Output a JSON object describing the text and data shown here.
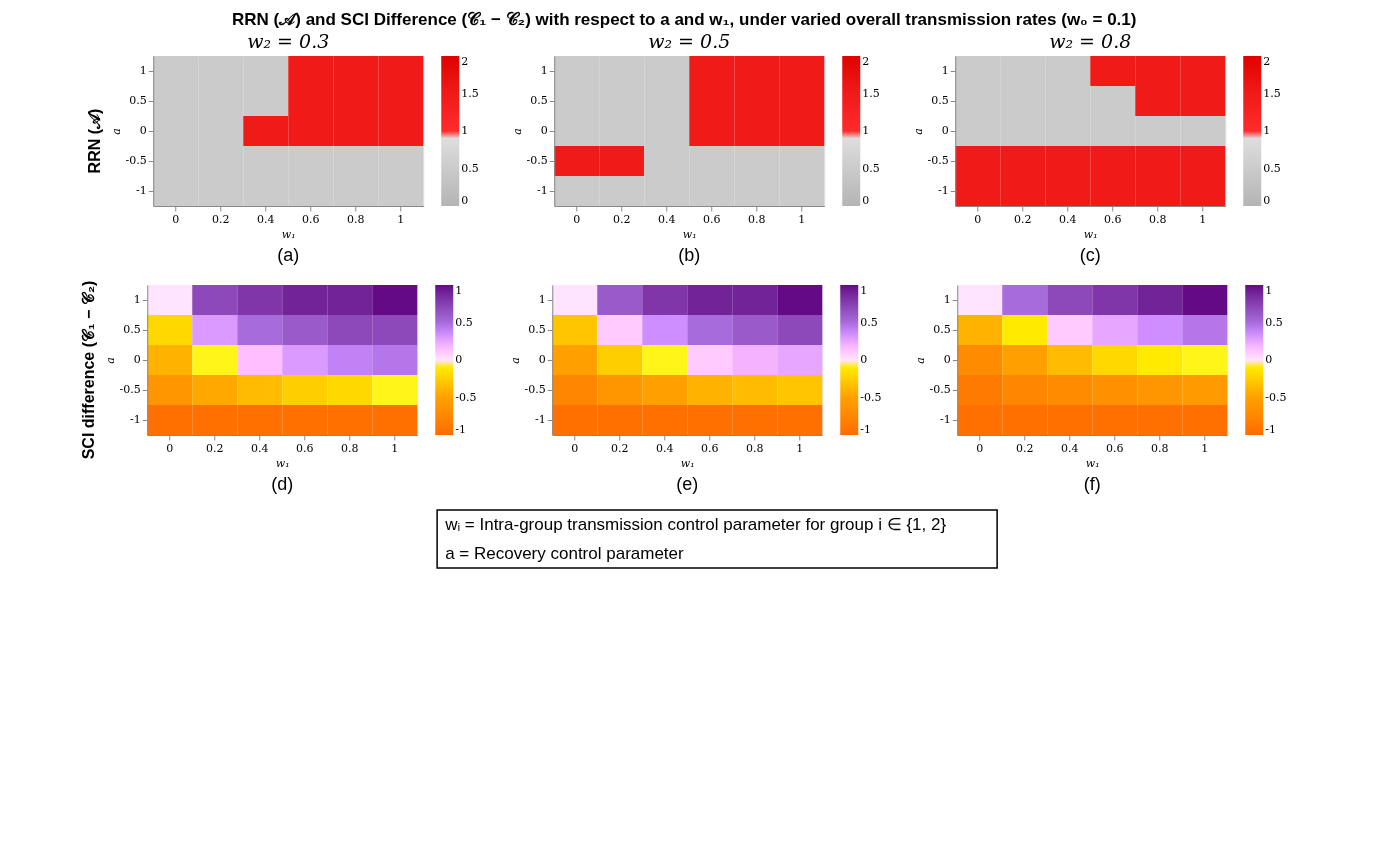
{
  "chart_data": [
    {
      "type": "heatmap",
      "title": "w₂ = 0.3",
      "xlabel": "w₁",
      "ylabel": "a",
      "annotations": [
        "RRN (𝒜) and SCI Difference (𝒞₁ − 𝒞₂) with respect to a and w₁, under varied overall transmission rates (w₀ = 0.1)",
        "RRN (𝒜)",
        "(a)",
        "wᵢ = Intra-group transmission control parameter for group i ∈ {1, 2}",
        "a = Recovery control parameter"
      ],
      "categories": [
        "0",
        "0.2",
        "0.4",
        "0.6",
        "0.8",
        "1"
      ],
      "y_categories": [
        "1",
        "0.5",
        "0",
        "-0.5",
        "-1"
      ],
      "cells": [
        [
          0.5,
          0.5,
          0.5,
          1.5,
          1.5,
          1.5
        ],
        [
          0.5,
          0.5,
          0.5,
          1.5,
          1.5,
          1.5
        ],
        [
          0.5,
          0.5,
          1.5,
          1.5,
          1.5,
          1.5
        ],
        [
          0.5,
          0.5,
          0.5,
          0.5,
          0.5,
          0.5
        ],
        [
          0.5,
          0.5,
          0.5,
          0.5,
          0.5,
          0.5
        ]
      ],
      "clim": [
        0,
        2
      ],
      "cticks": [
        0,
        0.5,
        1,
        1.5,
        2
      ]
    },
    {
      "type": "heatmap",
      "title": "w₂ = 0.5",
      "xlabel": "w₁",
      "ylabel": "a",
      "annotations": [
        "(b)"
      ],
      "categories": [
        "0",
        "0.2",
        "0.4",
        "0.6",
        "0.8",
        "1"
      ],
      "y_categories": [
        "1",
        "0.5",
        "0",
        "-0.5",
        "-1"
      ],
      "cells": [
        [
          0.5,
          0.5,
          0.5,
          1.5,
          1.5,
          1.5
        ],
        [
          0.5,
          0.5,
          0.5,
          1.5,
          1.5,
          1.5
        ],
        [
          0.5,
          0.5,
          0.5,
          1.5,
          1.5,
          1.5
        ],
        [
          1.5,
          1.5,
          0.5,
          0.5,
          0.5,
          0.5
        ],
        [
          0.5,
          0.5,
          0.5,
          0.5,
          0.5,
          0.5
        ]
      ],
      "clim": [
        0,
        2
      ],
      "cticks": [
        0,
        0.5,
        1,
        1.5,
        2
      ]
    },
    {
      "type": "heatmap",
      "title": "w₂ = 0.8",
      "xlabel": "w₁",
      "ylabel": "a",
      "annotations": [
        "(c)"
      ],
      "categories": [
        "0",
        "0.2",
        "0.4",
        "0.6",
        "0.8",
        "1"
      ],
      "y_categories": [
        "1",
        "0.5",
        "0",
        "-0.5",
        "-1"
      ],
      "cells": [
        [
          0.5,
          0.5,
          0.5,
          1.5,
          1.5,
          1.5
        ],
        [
          0.5,
          0.5,
          0.5,
          0.5,
          1.5,
          1.5
        ],
        [
          0.5,
          0.5,
          0.5,
          0.5,
          0.5,
          0.5
        ],
        [
          1.5,
          1.5,
          1.5,
          1.5,
          1.5,
          1.5
        ],
        [
          1.5,
          1.5,
          1.5,
          1.5,
          1.5,
          1.5
        ]
      ],
      "clim": [
        0,
        2
      ],
      "cticks": [
        0,
        0.5,
        1,
        1.5,
        2
      ]
    },
    {
      "type": "heatmap",
      "xlabel": "w₁",
      "ylabel": "a",
      "annotations": [
        "SCI difference (𝒞₁ − 𝒞₂)",
        "(d)"
      ],
      "categories": [
        "0",
        "0.2",
        "0.4",
        "0.6",
        "0.8",
        "1"
      ],
      "y_categories": [
        "1",
        "0.5",
        "0",
        "-0.5",
        "-1"
      ],
      "cells": [
        [
          0,
          0.7,
          0.8,
          0.9,
          0.9,
          1
        ],
        [
          -0.2,
          0.3,
          0.5,
          0.6,
          0.7,
          0.7
        ],
        [
          -0.4,
          -0.05,
          0.15,
          0.3,
          0.4,
          0.45
        ],
        [
          -0.6,
          -0.45,
          -0.35,
          -0.25,
          -0.2,
          -0.05
        ],
        [
          -0.95,
          -0.95,
          -0.95,
          -0.95,
          -0.95,
          -0.95
        ]
      ],
      "clim": [
        -1,
        1
      ],
      "cticks": [
        -1,
        -0.5,
        0,
        0.5,
        1
      ]
    },
    {
      "type": "heatmap",
      "xlabel": "w₁",
      "ylabel": "a",
      "annotations": [
        "(e)"
      ],
      "categories": [
        "0",
        "0.2",
        "0.4",
        "0.6",
        "0.8",
        "1"
      ],
      "y_categories": [
        "1",
        "0.5",
        "0",
        "-0.5",
        "-1"
      ],
      "cells": [
        [
          0,
          0.6,
          0.8,
          0.9,
          0.9,
          1
        ],
        [
          -0.3,
          0.1,
          0.35,
          0.5,
          0.6,
          0.7
        ],
        [
          -0.5,
          -0.25,
          -0.05,
          0.1,
          0.2,
          0.25
        ],
        [
          -0.75,
          -0.6,
          -0.5,
          -0.4,
          -0.35,
          -0.3
        ],
        [
          -0.95,
          -0.95,
          -0.95,
          -0.95,
          -0.95,
          -0.95
        ]
      ],
      "clim": [
        -1,
        1
      ],
      "cticks": [
        -1,
        -0.5,
        0,
        0.5,
        1
      ]
    },
    {
      "type": "heatmap",
      "xlabel": "w₁",
      "ylabel": "a",
      "annotations": [
        "(f)"
      ],
      "categories": [
        "0",
        "0.2",
        "0.4",
        "0.6",
        "0.8",
        "1"
      ],
      "y_categories": [
        "1",
        "0.5",
        "0",
        "-0.5",
        "-1"
      ],
      "cells": [
        [
          0,
          0.5,
          0.7,
          0.8,
          0.9,
          1
        ],
        [
          -0.4,
          -0.1,
          0.1,
          0.25,
          0.35,
          0.45
        ],
        [
          -0.7,
          -0.5,
          -0.35,
          -0.2,
          -0.1,
          -0.05
        ],
        [
          -0.85,
          -0.75,
          -0.7,
          -0.65,
          -0.6,
          -0.55
        ],
        [
          -0.95,
          -0.95,
          -0.95,
          -0.95,
          -0.95,
          -0.95
        ]
      ],
      "clim": [
        -1,
        1
      ],
      "cticks": [
        -1,
        -0.5,
        0,
        0.5,
        1
      ]
    }
  ]
}
